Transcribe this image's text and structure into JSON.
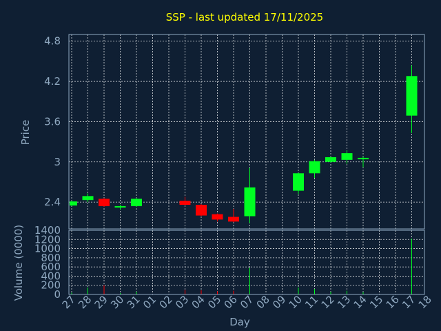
{
  "chart_data": {
    "type": "candlestick",
    "title": "SSP - last updated 17/11/2025",
    "ylabel": "Price",
    "volume_ylabel": "Volume (0000)",
    "xlabel": "Day",
    "ylim": [
      2.0,
      4.9
    ],
    "yticks": [
      "4.8",
      "4.2",
      "3.6",
      "3",
      "2.4"
    ],
    "ytick_values": [
      4.8,
      4.2,
      3.6,
      3.0,
      2.4
    ],
    "volume_ylim": [
      0,
      1400
    ],
    "volume_yticks": [
      "1400",
      "1200",
      "1000",
      "800",
      "600",
      "400",
      "200",
      "0"
    ],
    "volume_ytick_values": [
      1400,
      1200,
      1000,
      800,
      600,
      400,
      200,
      0
    ],
    "x_ticks": [
      "27",
      "28",
      "29",
      "30",
      "31",
      "01",
      "02",
      "03",
      "04",
      "05",
      "06",
      "07",
      "08",
      "09",
      "10",
      "11",
      "12",
      "13",
      "14",
      "15",
      "16",
      "17",
      "18"
    ],
    "colors": {
      "up": "#00ff22",
      "down": "#ff0000",
      "background": "#0f1f33",
      "axis_text": "#8fa8c0",
      "title": "#ffff00"
    },
    "candles": [
      {
        "day": "27",
        "open": 2.35,
        "close": 2.41,
        "high": 2.42,
        "low": 2.34,
        "volume": 40
      },
      {
        "day": "28",
        "open": 2.43,
        "close": 2.49,
        "high": 2.53,
        "low": 2.4,
        "volume": 150
      },
      {
        "day": "29",
        "open": 2.45,
        "close": 2.34,
        "high": 2.46,
        "low": 2.33,
        "volume": 200
      },
      {
        "day": "30",
        "open": 2.32,
        "close": 2.34,
        "high": 2.36,
        "low": 2.29,
        "volume": 30
      },
      {
        "day": "31",
        "open": 2.34,
        "close": 2.45,
        "high": 2.46,
        "low": 2.33,
        "volume": 60
      },
      {
        "day": "03",
        "open": 2.42,
        "close": 2.36,
        "high": 2.48,
        "low": 2.35,
        "volume": 100
      },
      {
        "day": "04",
        "open": 2.36,
        "close": 2.2,
        "high": 2.37,
        "low": 2.19,
        "volume": 90
      },
      {
        "day": "05",
        "open": 2.22,
        "close": 2.14,
        "high": 2.23,
        "low": 2.11,
        "volume": 70
      },
      {
        "day": "06",
        "open": 2.18,
        "close": 2.11,
        "high": 2.3,
        "low": 2.1,
        "volume": 80
      },
      {
        "day": "07",
        "open": 2.19,
        "close": 2.62,
        "high": 2.91,
        "low": 2.09,
        "volume": 580
      },
      {
        "day": "10",
        "open": 2.57,
        "close": 2.83,
        "high": 2.84,
        "low": 2.52,
        "volume": 150
      },
      {
        "day": "11",
        "open": 2.83,
        "close": 3.01,
        "high": 3.03,
        "low": 2.76,
        "volume": 120
      },
      {
        "day": "12",
        "open": 3.0,
        "close": 3.07,
        "high": 3.08,
        "low": 2.99,
        "volume": 60
      },
      {
        "day": "13",
        "open": 3.03,
        "close": 3.13,
        "high": 3.17,
        "low": 2.97,
        "volume": 80
      },
      {
        "day": "14",
        "open": 3.05,
        "close": 3.06,
        "high": 3.08,
        "low": 2.92,
        "volume": 50
      },
      {
        "day": "17",
        "open": 3.69,
        "close": 4.28,
        "high": 4.44,
        "low": 3.43,
        "volume": 1220
      }
    ]
  }
}
